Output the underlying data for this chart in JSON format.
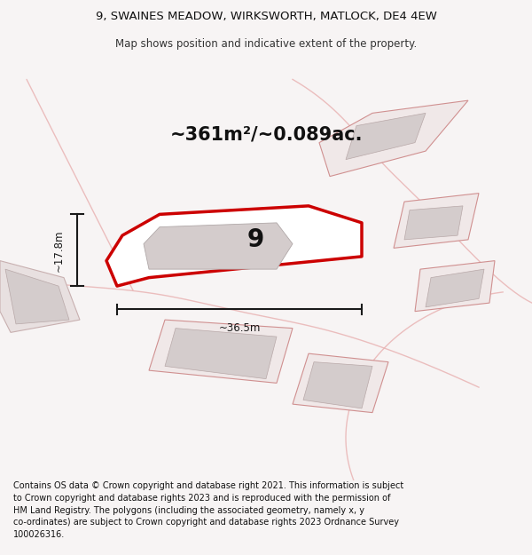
{
  "title_line1": "9, SWAINES MEADOW, WIRKSWORTH, MATLOCK, DE4 4EW",
  "title_line2": "Map shows position and indicative extent of the property.",
  "area_text": "~361m²/~0.089ac.",
  "dim_width": "~36.5m",
  "dim_height": "~17.8m",
  "plot_number": "9",
  "footer_text": "Contains OS data © Crown copyright and database right 2021. This information is subject to Crown copyright and database rights 2023 and is reproduced with the permission of HM Land Registry. The polygons (including the associated geometry, namely x, y co-ordinates) are subject to Crown copyright and database rights 2023 Ordnance Survey 100026316.",
  "bg_color": "#f7f4f4",
  "map_bg": "#f7f4f4",
  "plot_fill": "#ffffff",
  "plot_edge": "#cc0000",
  "dim_color": "#1a1a1a",
  "building_fill": "#d4cccc",
  "road_color": "#e8b0b0",
  "other_plot_fill": "#f0e8e8",
  "other_plot_edge": "#d09090"
}
